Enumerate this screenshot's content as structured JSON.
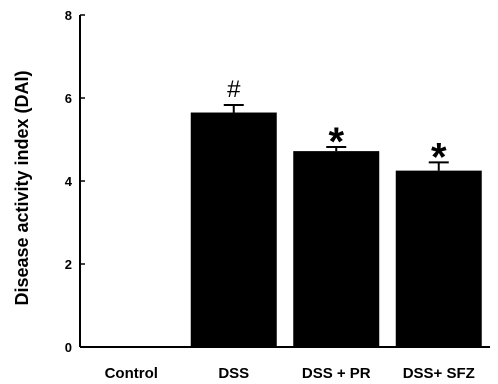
{
  "chart_data": {
    "type": "bar",
    "categories": [
      "Control",
      "DSS",
      "DSS + PR",
      "DSS+ SFZ"
    ],
    "values": [
      0,
      5.65,
      4.72,
      4.25
    ],
    "errors": [
      0,
      0.18,
      0.1,
      0.2
    ],
    "annotations": [
      "",
      "#",
      "*",
      "*"
    ],
    "xlabel": "",
    "ylabel": "Disease activity index (DAI)",
    "ylim": [
      0,
      8
    ],
    "yticks": [
      0,
      2,
      4,
      6,
      8
    ],
    "grid": false,
    "bar_color": "#000000"
  }
}
